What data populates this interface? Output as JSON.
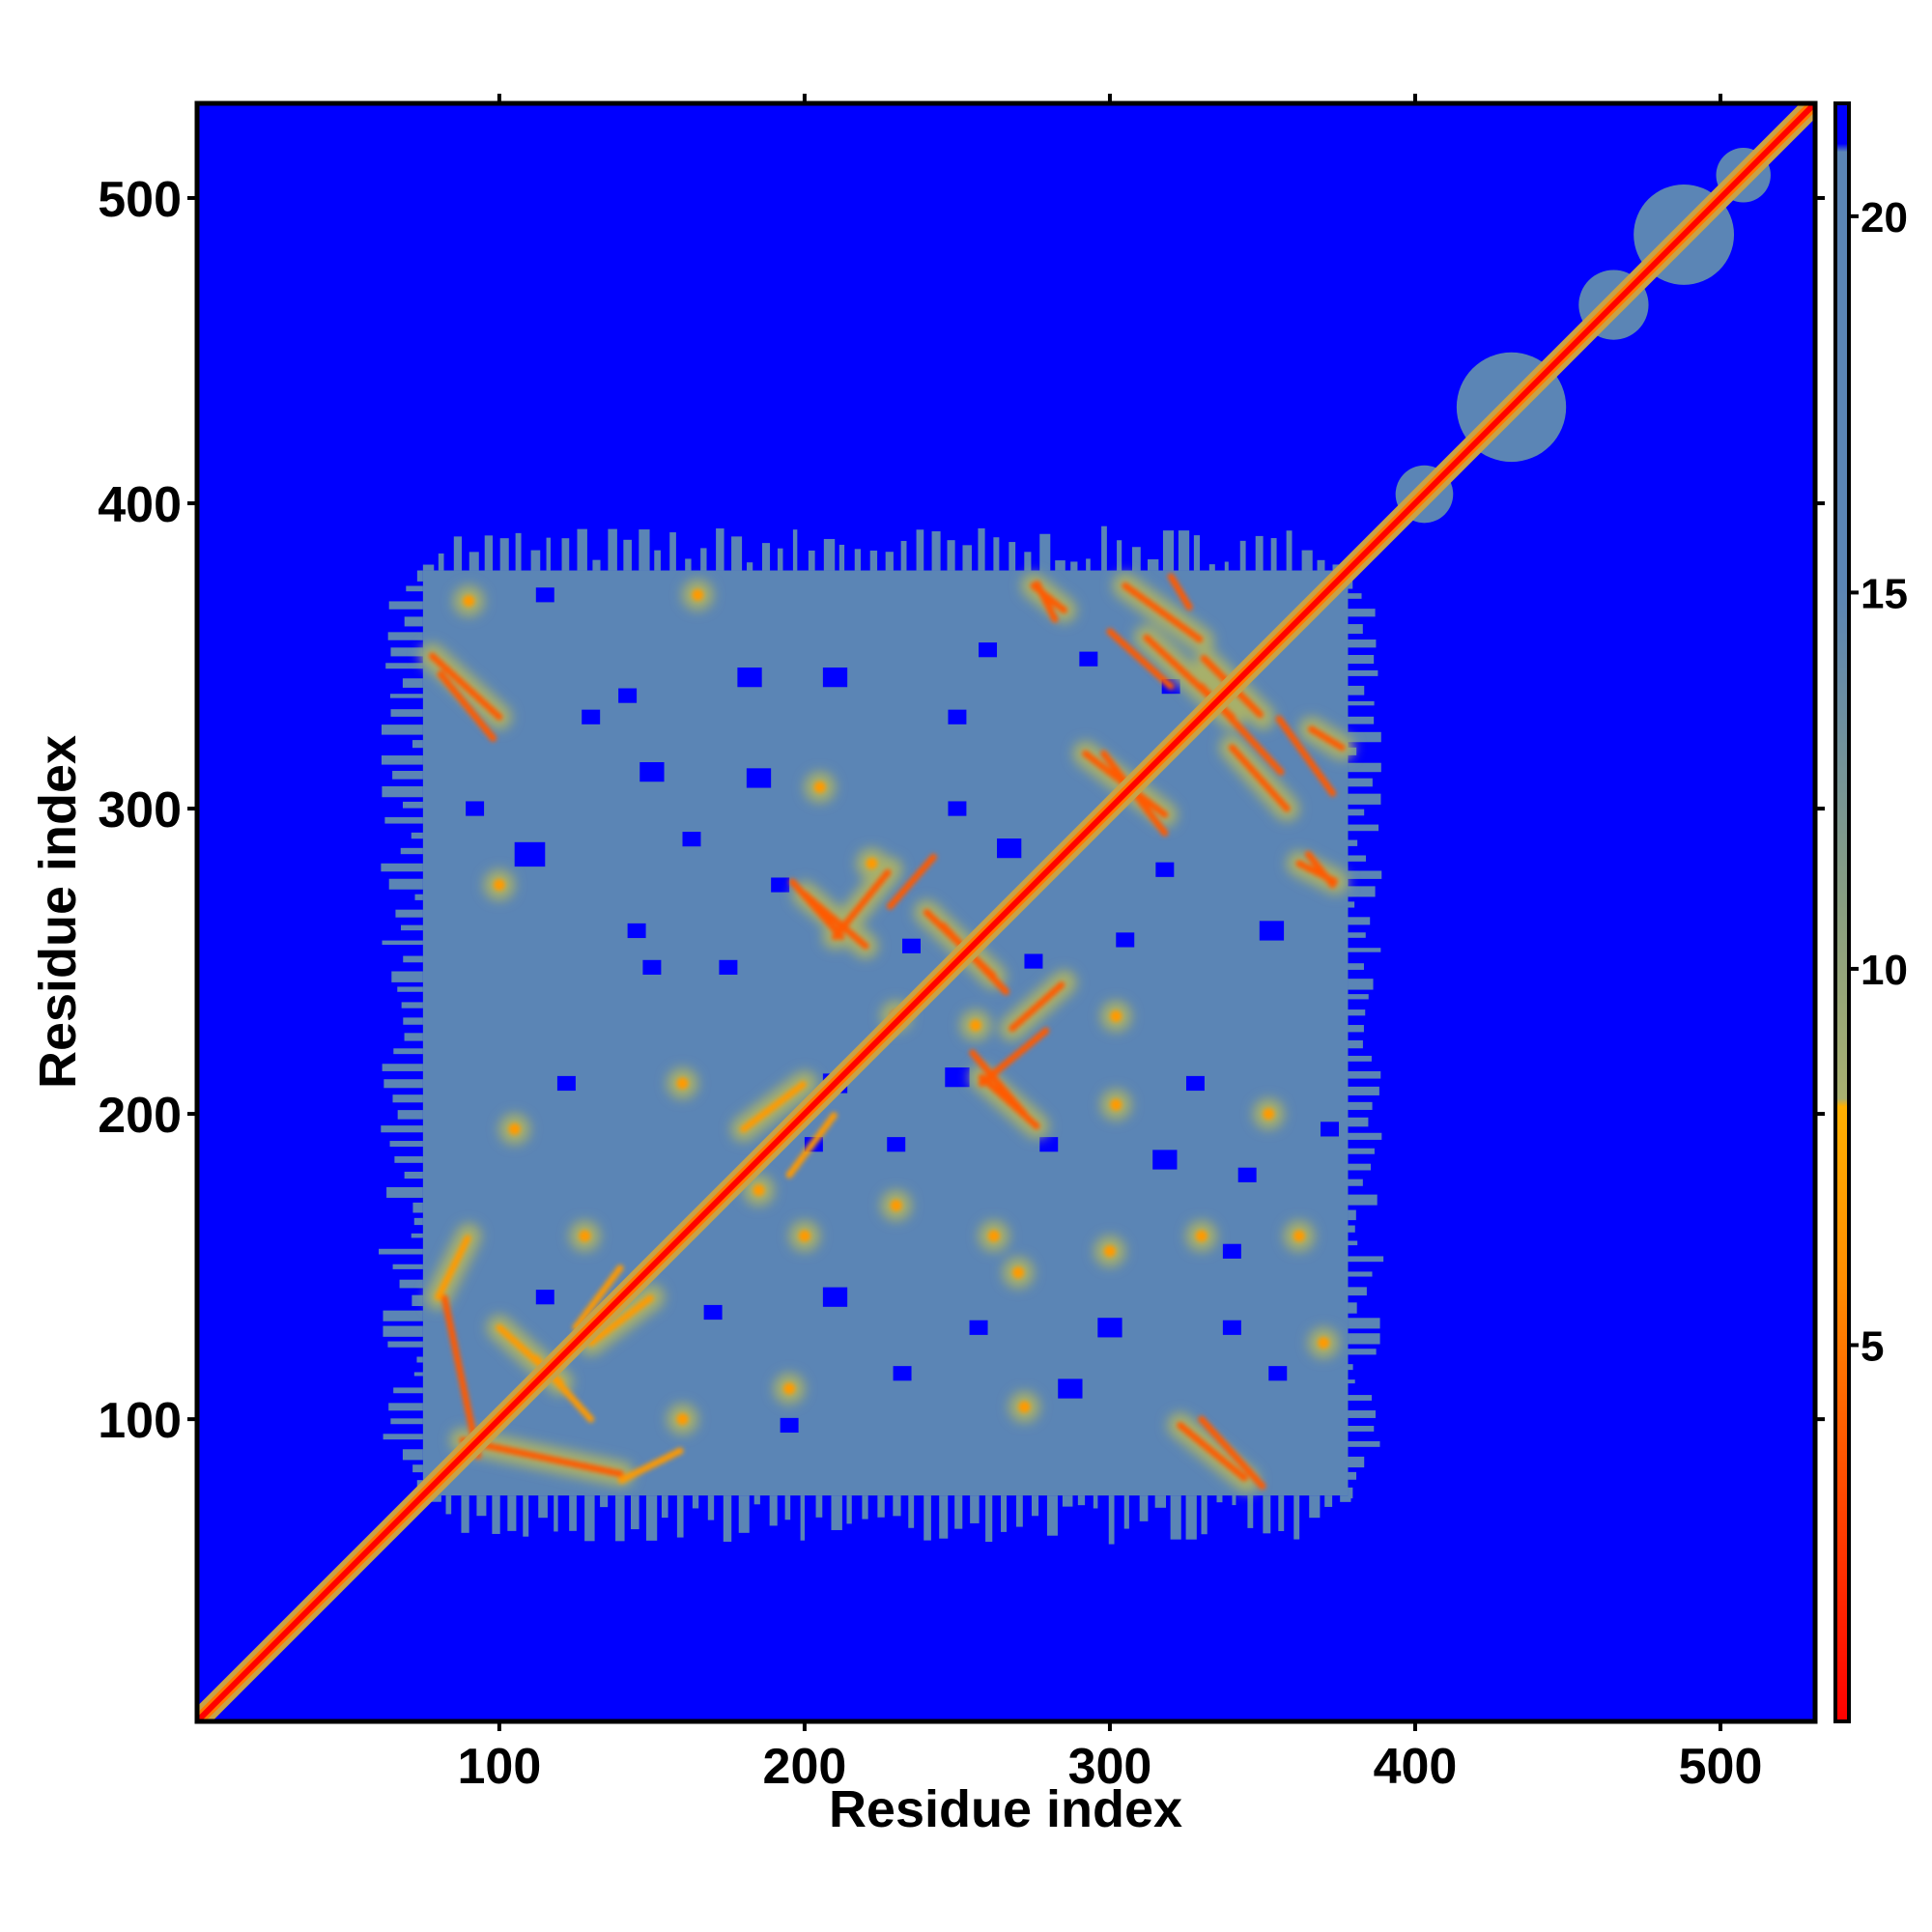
{
  "chart_data": {
    "type": "heatmap",
    "title": "",
    "xlabel": "Residue index",
    "ylabel": "Residue index",
    "xlim": [
      1,
      531
    ],
    "ylim": [
      1,
      531
    ],
    "x_ticks": [
      100,
      200,
      300,
      400,
      500
    ],
    "y_ticks": [
      100,
      200,
      300,
      400,
      500
    ],
    "grid": false,
    "colorbar": {
      "range": [
        0,
        21.5
      ],
      "ticks": [
        5,
        10,
        15,
        20
      ],
      "colors": [
        "#ff0000",
        "#ff8c00",
        "#9aaa6a",
        "#5b85b5",
        "#0000ff"
      ]
    },
    "background_value": 21,
    "diagonal": {
      "from": 1,
      "to": 531,
      "value": 1
    },
    "dense_region": {
      "from": 75,
      "to": 378,
      "value": 17
    },
    "contact_lines": [
      {
        "from": [
          200,
          272
        ],
        "to": [
          220,
          255
        ],
        "value": 4
      },
      {
        "from": [
          210,
          258
        ],
        "to": [
          228,
          280
        ],
        "value": 4
      },
      {
        "from": [
          240,
          266
        ],
        "to": [
          262,
          245
        ],
        "value": 4
      },
      {
        "from": [
          258,
          212
        ],
        "to": [
          276,
          196
        ],
        "value": 4
      },
      {
        "from": [
          268,
          228
        ],
        "to": [
          285,
          243
        ],
        "value": 5
      },
      {
        "from": [
          312,
          356
        ],
        "to": [
          340,
          330
        ],
        "value": 4
      },
      {
        "from": [
          332,
          348
        ],
        "to": [
          350,
          330
        ],
        "value": 4
      },
      {
        "from": [
          340,
          320
        ],
        "to": [
          358,
          300
        ],
        "value": 5
      },
      {
        "from": [
          366,
          326
        ],
        "to": [
          376,
          320
        ],
        "value": 5
      },
      {
        "from": [
          362,
          282
        ],
        "to": [
          374,
          276
        ],
        "value": 4
      },
      {
        "from": [
          275,
          373
        ],
        "to": [
          285,
          365
        ],
        "value": 4
      },
      {
        "from": [
          305,
          373
        ],
        "to": [
          330,
          355
        ],
        "value": 5
      },
      {
        "from": [
          88,
          93
        ],
        "to": [
          140,
          82
        ],
        "value": 5
      },
      {
        "from": [
          100,
          130
        ],
        "to": [
          120,
          112
        ],
        "value": 6
      },
      {
        "from": [
          80,
          140
        ],
        "to": [
          90,
          160
        ],
        "value": 6
      },
      {
        "from": [
          78,
          350
        ],
        "to": [
          100,
          330
        ],
        "value": 5
      },
      {
        "from": [
          323,
          98
        ],
        "to": [
          345,
          80
        ],
        "value": 5
      },
      {
        "from": [
          292,
          318
        ],
        "to": [
          318,
          298
        ],
        "value": 5
      },
      {
        "from": [
          130,
          125
        ],
        "to": [
          150,
          140
        ],
        "value": 6
      },
      {
        "from": [
          180,
          195
        ],
        "to": [
          200,
          210
        ],
        "value": 6
      }
    ],
    "contact_spots": [
      {
        "x": 90,
        "y": 368,
        "value": 6
      },
      {
        "x": 165,
        "y": 370,
        "value": 6
      },
      {
        "x": 205,
        "y": 307,
        "value": 7
      },
      {
        "x": 222,
        "y": 282,
        "value": 6
      },
      {
        "x": 256,
        "y": 229,
        "value": 6
      },
      {
        "x": 230,
        "y": 232,
        "value": 4
      },
      {
        "x": 302,
        "y": 232,
        "value": 6
      },
      {
        "x": 302,
        "y": 203,
        "value": 7
      },
      {
        "x": 272,
        "y": 104,
        "value": 6
      },
      {
        "x": 270,
        "y": 148,
        "value": 7
      },
      {
        "x": 300,
        "y": 155,
        "value": 7
      },
      {
        "x": 362,
        "y": 160,
        "value": 6
      },
      {
        "x": 370,
        "y": 125,
        "value": 6
      },
      {
        "x": 330,
        "y": 160,
        "value": 7
      },
      {
        "x": 230,
        "y": 170,
        "value": 7
      },
      {
        "x": 105,
        "y": 195,
        "value": 6
      },
      {
        "x": 128,
        "y": 160,
        "value": 7
      },
      {
        "x": 160,
        "y": 210,
        "value": 7
      },
      {
        "x": 185,
        "y": 175,
        "value": 6
      },
      {
        "x": 200,
        "y": 160,
        "value": 7
      },
      {
        "x": 195,
        "y": 110,
        "value": 7
      },
      {
        "x": 160,
        "y": 100,
        "value": 6
      },
      {
        "x": 352,
        "y": 200,
        "value": 7
      },
      {
        "x": 100,
        "y": 275,
        "value": 6
      },
      {
        "x": 262,
        "y": 160,
        "value": 7
      }
    ],
    "blue_patches": [
      {
        "x": 110,
        "y": 285,
        "r": 5
      },
      {
        "x": 142,
        "y": 337,
        "r": 3
      },
      {
        "x": 182,
        "y": 343,
        "r": 4
      },
      {
        "x": 210,
        "y": 343,
        "r": 4
      },
      {
        "x": 250,
        "y": 330,
        "r": 3
      },
      {
        "x": 185,
        "y": 310,
        "r": 4
      },
      {
        "x": 150,
        "y": 312,
        "r": 4
      },
      {
        "x": 267,
        "y": 287,
        "r": 4
      },
      {
        "x": 305,
        "y": 257,
        "r": 3
      },
      {
        "x": 150,
        "y": 248,
        "r": 3
      },
      {
        "x": 175,
        "y": 248,
        "r": 3
      },
      {
        "x": 210,
        "y": 210,
        "r": 4
      },
      {
        "x": 250,
        "y": 212,
        "r": 4
      },
      {
        "x": 318,
        "y": 185,
        "r": 4
      },
      {
        "x": 345,
        "y": 180,
        "r": 3
      },
      {
        "x": 210,
        "y": 140,
        "r": 4
      },
      {
        "x": 300,
        "y": 130,
        "r": 4
      },
      {
        "x": 287,
        "y": 110,
        "r": 4
      },
      {
        "x": 195,
        "y": 98,
        "r": 3
      },
      {
        "x": 232,
        "y": 115,
        "r": 3
      },
      {
        "x": 122,
        "y": 210,
        "r": 3
      },
      {
        "x": 92,
        "y": 300,
        "r": 3
      },
      {
        "x": 145,
        "y": 260,
        "r": 3
      },
      {
        "x": 320,
        "y": 340,
        "r": 3
      },
      {
        "x": 293,
        "y": 349,
        "r": 3
      },
      {
        "x": 260,
        "y": 352,
        "r": 3
      },
      {
        "x": 115,
        "y": 370,
        "r": 3
      },
      {
        "x": 353,
        "y": 260,
        "r": 4
      },
      {
        "x": 372,
        "y": 195,
        "r": 3
      },
      {
        "x": 340,
        "y": 155,
        "r": 3
      },
      {
        "x": 355,
        "y": 115,
        "r": 3
      },
      {
        "x": 250,
        "y": 300,
        "r": 3
      },
      {
        "x": 230,
        "y": 190,
        "r": 3
      },
      {
        "x": 115,
        "y": 140,
        "r": 3
      },
      {
        "x": 163,
        "y": 290,
        "r": 3
      },
      {
        "x": 280,
        "y": 190,
        "r": 3
      },
      {
        "x": 328,
        "y": 210,
        "r": 3
      },
      {
        "x": 318,
        "y": 280,
        "r": 3
      },
      {
        "x": 235,
        "y": 255,
        "r": 3
      },
      {
        "x": 275,
        "y": 250,
        "r": 3
      },
      {
        "x": 192,
        "y": 275,
        "r": 3
      },
      {
        "x": 130,
        "y": 330,
        "r": 3
      },
      {
        "x": 340,
        "y": 130,
        "r": 3
      },
      {
        "x": 203,
        "y": 190,
        "r": 3
      },
      {
        "x": 257,
        "y": 130,
        "r": 3
      },
      {
        "x": 170,
        "y": 135,
        "r": 3
      }
    ],
    "diagonal_bulges": [
      {
        "from": 398,
        "to": 408,
        "value": 16
      },
      {
        "from": 418,
        "to": 445,
        "value": 16
      },
      {
        "from": 458,
        "to": 472,
        "value": 16
      },
      {
        "from": 476,
        "to": 500,
        "value": 16
      },
      {
        "from": 503,
        "to": 512,
        "value": 16
      }
    ]
  }
}
